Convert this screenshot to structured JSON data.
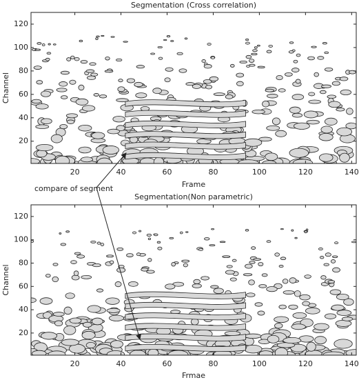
{
  "chart_data": [
    {
      "type": "contour",
      "title": "Segmentation (Cross correlation)",
      "xlabel": "Frame",
      "ylabel": "Channel",
      "xlim": [
        1,
        142
      ],
      "ylim": [
        1,
        130
      ],
      "xticks": [
        20,
        40,
        60,
        80,
        100,
        120,
        140
      ],
      "yticks": [
        20,
        40,
        60,
        80,
        100,
        120
      ],
      "annotation": "compare of segment"
    },
    {
      "type": "contour",
      "title": "Segmentation(Non parametric)",
      "xlabel": "Frmae",
      "ylabel": "Channel",
      "xlim": [
        1,
        142
      ],
      "ylim": [
        1,
        130
      ],
      "xticks": [
        20,
        40,
        60,
        80,
        100,
        120,
        140
      ],
      "yticks": [
        20,
        40,
        60,
        80,
        100,
        120
      ]
    }
  ]
}
